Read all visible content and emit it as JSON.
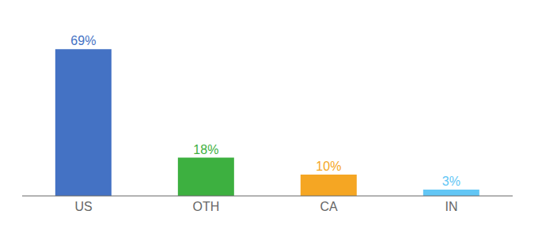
{
  "chart_data": {
    "type": "bar",
    "categories": [
      "US",
      "OTH",
      "CA",
      "IN"
    ],
    "values": [
      69,
      18,
      10,
      3
    ],
    "value_labels": [
      "69%",
      "18%",
      "10%",
      "3%"
    ],
    "colors": [
      "#4472c4",
      "#3db040",
      "#f5a623",
      "#62c6f5"
    ],
    "ylim": [
      0,
      78
    ],
    "data_labels": true,
    "tick_labels": "x"
  }
}
